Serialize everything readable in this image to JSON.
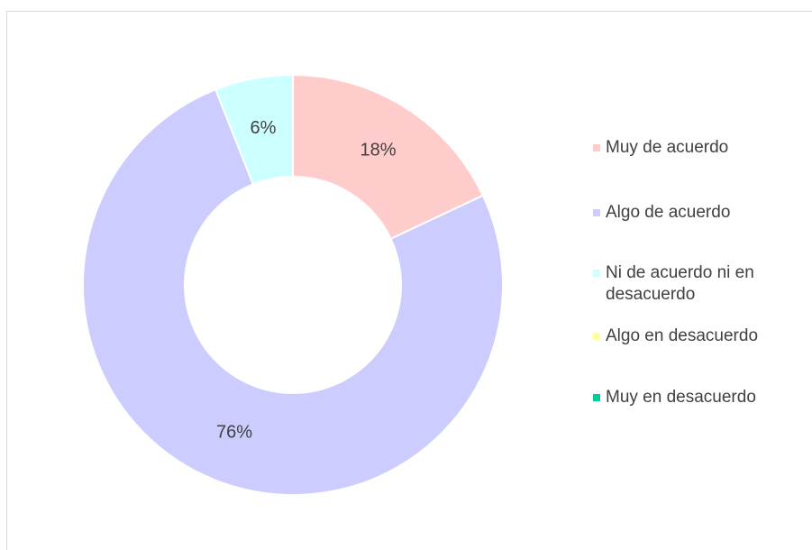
{
  "chart_data": {
    "type": "donut",
    "categories": [
      "Muy de acuerdo",
      "Algo de acuerdo",
      "Ni de acuerdo ni en desacuerdo",
      "Algo en desacuerdo",
      "Muy en desacuerdo"
    ],
    "values": [
      18,
      76,
      6,
      0,
      0
    ],
    "value_labels": [
      "18%",
      "76%",
      "6%",
      null,
      null
    ],
    "colors": [
      "#ffcccc",
      "#ccccff",
      "#ccffff",
      "#ffff99",
      "#00cc99"
    ],
    "legend": "right"
  }
}
